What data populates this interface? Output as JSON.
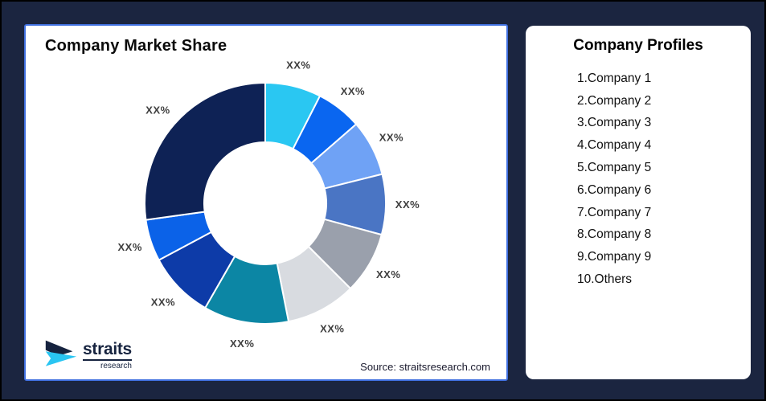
{
  "frame": {
    "background_color": "#1B2540",
    "outer_border_color": "#000000"
  },
  "chart_card": {
    "title": "Company Market Share",
    "source": "Source: straitsresearch.com",
    "border_color": "#4070E0",
    "logo": {
      "brand": "straits",
      "sub": "research",
      "navy": "#16233F",
      "cyan": "#29C5F2"
    }
  },
  "profiles_card": {
    "title": "Company Profiles",
    "items": [
      "1.Company 1",
      "2.Company 2",
      "3.Company 3",
      "4.Company 4",
      "5.Company 5",
      "6.Company 6",
      "7.Company 7",
      "8.Company 8",
      "9.Company 9",
      "10.Others"
    ]
  },
  "chart_data": {
    "type": "pie",
    "variant": "donut",
    "title": "Company Market Share",
    "start_angle_deg": 0,
    "direction": "clockwise",
    "outer_radius_px": 150,
    "inner_radius_px": 76,
    "label_radius_px": 177,
    "label_color": "#3F3F3F",
    "slice_gap_color": "#FFFFFF",
    "slices": [
      {
        "name": "Company 1",
        "label": "XX%",
        "percent": 7.5,
        "color": "#2AC7F2"
      },
      {
        "name": "Company 2",
        "label": "XX%",
        "percent": 6.1,
        "color": "#0A66F0"
      },
      {
        "name": "Company 3",
        "label": "XX%",
        "percent": 7.5,
        "color": "#6FA2F5"
      },
      {
        "name": "Company 4",
        "label": "XX%",
        "percent": 8.1,
        "color": "#4A75C4"
      },
      {
        "name": "Company 5",
        "label": "XX%",
        "percent": 8.3,
        "color": "#9AA0AC"
      },
      {
        "name": "Company 6",
        "label": "XX%",
        "percent": 9.4,
        "color": "#D8DBE0"
      },
      {
        "name": "Company 7",
        "label": "XX%",
        "percent": 11.4,
        "color": "#0C86A4"
      },
      {
        "name": "Company 8",
        "label": "XX%",
        "percent": 8.9,
        "color": "#0D3BA8"
      },
      {
        "name": "Company 9",
        "label": "XX%",
        "percent": 5.6,
        "color": "#0B62E8"
      },
      {
        "name": "Others",
        "label": "XX%",
        "percent": 27.2,
        "color": "#0E2255"
      }
    ]
  }
}
